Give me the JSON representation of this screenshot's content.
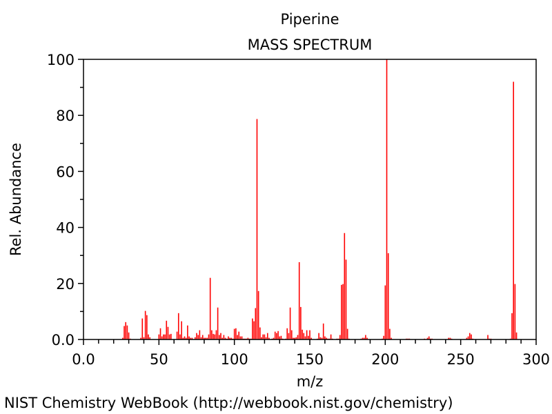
{
  "chart_data": {
    "type": "bar",
    "title": "Piperine",
    "subtitle": "MASS SPECTRUM",
    "xlabel": "m/z",
    "ylabel": "Rel. Abundance",
    "xlim": [
      0,
      300
    ],
    "ylim": [
      0,
      100
    ],
    "x_ticks": [
      0,
      50,
      100,
      150,
      200,
      250,
      300
    ],
    "x_tick_labels": [
      "0.0",
      "50",
      "100",
      "150",
      "200",
      "250",
      "300"
    ],
    "y_ticks": [
      0,
      20,
      40,
      60,
      80,
      100
    ],
    "y_tick_labels": [
      "0.0",
      "20",
      "40",
      "60",
      "80",
      "100"
    ],
    "grid": false,
    "bar_color": "#ff0000",
    "peaks": [
      [
        26,
        0.6
      ],
      [
        27,
        4.8
      ],
      [
        28,
        6.2
      ],
      [
        29,
        5.0
      ],
      [
        30,
        2.5
      ],
      [
        31,
        0.3
      ],
      [
        38,
        0.6
      ],
      [
        39,
        7.5
      ],
      [
        40,
        0.8
      ],
      [
        41,
        10.2
      ],
      [
        42,
        8.7
      ],
      [
        43,
        1.8
      ],
      [
        44,
        0.8
      ],
      [
        50,
        1.8
      ],
      [
        51,
        4.0
      ],
      [
        52,
        1.1
      ],
      [
        53,
        1.8
      ],
      [
        54,
        1.8
      ],
      [
        55,
        6.7
      ],
      [
        56,
        4.5
      ],
      [
        57,
        1.8
      ],
      [
        58,
        2.0
      ],
      [
        62,
        2.8
      ],
      [
        63,
        9.4
      ],
      [
        64,
        1.8
      ],
      [
        65,
        6.5
      ],
      [
        66,
        0.6
      ],
      [
        67,
        1.1
      ],
      [
        68,
        0.6
      ],
      [
        69,
        5.0
      ],
      [
        70,
        1.1
      ],
      [
        71,
        0.6
      ],
      [
        72,
        0.6
      ],
      [
        74,
        0.8
      ],
      [
        75,
        2.3
      ],
      [
        76,
        1.6
      ],
      [
        77,
        3.3
      ],
      [
        78,
        0.8
      ],
      [
        79,
        1.6
      ],
      [
        80,
        0.6
      ],
      [
        81,
        0.6
      ],
      [
        82,
        0.6
      ],
      [
        83,
        1.8
      ],
      [
        84,
        22.0
      ],
      [
        85,
        3.3
      ],
      [
        86,
        2.0
      ],
      [
        87,
        1.8
      ],
      [
        88,
        3.3
      ],
      [
        89,
        11.4
      ],
      [
        90,
        1.6
      ],
      [
        91,
        2.3
      ],
      [
        92,
        0.6
      ],
      [
        93,
        1.6
      ],
      [
        94,
        0.6
      ],
      [
        95,
        0.3
      ],
      [
        96,
        1.1
      ],
      [
        97,
        0.6
      ],
      [
        98,
        0.6
      ],
      [
        99,
        0.3
      ],
      [
        100,
        3.8
      ],
      [
        101,
        4.0
      ],
      [
        102,
        1.6
      ],
      [
        103,
        2.8
      ],
      [
        104,
        1.1
      ],
      [
        105,
        1.1
      ],
      [
        106,
        0.3
      ],
      [
        107,
        0.3
      ],
      [
        108,
        0.3
      ],
      [
        109,
        0.6
      ],
      [
        110,
        0.3
      ],
      [
        111,
        0.3
      ],
      [
        112,
        7.5
      ],
      [
        113,
        6.5
      ],
      [
        114,
        11.2
      ],
      [
        115,
        78.7
      ],
      [
        116,
        17.3
      ],
      [
        117,
        4.3
      ],
      [
        118,
        0.8
      ],
      [
        119,
        1.8
      ],
      [
        120,
        1.8
      ],
      [
        121,
        0.8
      ],
      [
        122,
        2.3
      ],
      [
        123,
        0.6
      ],
      [
        125,
        0.3
      ],
      [
        126,
        0.6
      ],
      [
        127,
        2.8
      ],
      [
        128,
        2.3
      ],
      [
        129,
        3.0
      ],
      [
        130,
        1.1
      ],
      [
        131,
        1.3
      ],
      [
        132,
        0.3
      ],
      [
        134,
        0.3
      ],
      [
        135,
        4.0
      ],
      [
        136,
        2.3
      ],
      [
        137,
        11.4
      ],
      [
        138,
        3.3
      ],
      [
        139,
        0.6
      ],
      [
        140,
        0.6
      ],
      [
        141,
        0.8
      ],
      [
        142,
        1.6
      ],
      [
        143,
        27.6
      ],
      [
        144,
        11.6
      ],
      [
        145,
        3.5
      ],
      [
        146,
        2.3
      ],
      [
        147,
        1.1
      ],
      [
        148,
        3.3
      ],
      [
        149,
        1.3
      ],
      [
        150,
        3.3
      ],
      [
        151,
        0.6
      ],
      [
        155,
        0.3
      ],
      [
        156,
        2.3
      ],
      [
        157,
        0.8
      ],
      [
        158,
        0.6
      ],
      [
        159,
        5.7
      ],
      [
        160,
        1.1
      ],
      [
        161,
        0.6
      ],
      [
        162,
        0.3
      ],
      [
        163,
        0.3
      ],
      [
        164,
        1.8
      ],
      [
        165,
        0.3
      ],
      [
        168,
        0.3
      ],
      [
        169,
        0.3
      ],
      [
        170,
        1.6
      ],
      [
        171,
        19.5
      ],
      [
        172,
        19.8
      ],
      [
        173,
        38.0
      ],
      [
        174,
        28.5
      ],
      [
        175,
        3.8
      ],
      [
        176,
        0.3
      ],
      [
        184,
        0.3
      ],
      [
        185,
        0.6
      ],
      [
        186,
        0.6
      ],
      [
        187,
        1.6
      ],
      [
        188,
        0.6
      ],
      [
        198,
        0.3
      ],
      [
        199,
        1.3
      ],
      [
        200,
        19.3
      ],
      [
        201,
        100
      ],
      [
        202,
        30.8
      ],
      [
        203,
        3.8
      ],
      [
        204,
        0.6
      ],
      [
        214,
        0.3
      ],
      [
        215,
        0.3
      ],
      [
        216,
        0.3
      ],
      [
        226,
        0.3
      ],
      [
        228,
        0.6
      ],
      [
        229,
        1.1
      ],
      [
        230,
        0.3
      ],
      [
        231,
        0.3
      ],
      [
        242,
        0.6
      ],
      [
        243,
        0.6
      ],
      [
        244,
        0.3
      ],
      [
        254,
        0.6
      ],
      [
        255,
        1.1
      ],
      [
        256,
        2.3
      ],
      [
        257,
        1.8
      ],
      [
        258,
        0.3
      ],
      [
        268,
        1.6
      ],
      [
        269,
        0.3
      ],
      [
        270,
        0.3
      ],
      [
        283,
        0.3
      ],
      [
        284,
        9.4
      ],
      [
        285,
        92.0
      ],
      [
        286,
        19.8
      ],
      [
        287,
        2.5
      ]
    ]
  },
  "footer": "NIST Chemistry WebBook (http://webbook.nist.gov/chemistry)"
}
